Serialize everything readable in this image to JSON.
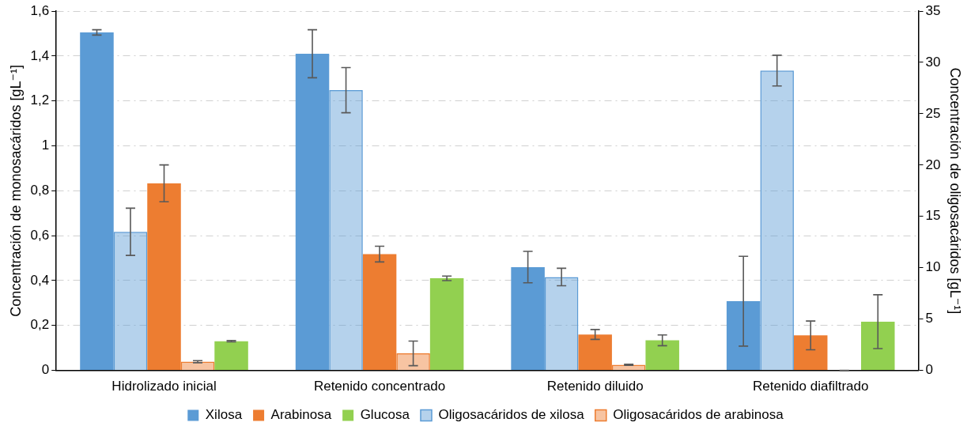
{
  "chart_data": {
    "type": "bar",
    "categories": [
      "Hidrolizado inicial",
      "Retenido concentrado",
      "Retenido diluido",
      "Retenido diafiltrado"
    ],
    "ylabel": "Concentración de monosacáridos [gL⁻¹]",
    "y2label": "Concentración de oligosacáridos [gL⁻¹]",
    "ylim": [
      0,
      1.6
    ],
    "yticks": [
      {
        "value": 0,
        "label": "0"
      },
      {
        "value": 0.2,
        "label": "0,2"
      },
      {
        "value": 0.4,
        "label": "0,4"
      },
      {
        "value": 0.6,
        "label": "0,6"
      },
      {
        "value": 0.8,
        "label": "0,8"
      },
      {
        "value": 1,
        "label": "1"
      },
      {
        "value": 1.2,
        "label": "1,2"
      },
      {
        "value": 1.4,
        "label": "1,4"
      },
      {
        "value": 1.6,
        "label": "1,6"
      }
    ],
    "y2lim": [
      0,
      35
    ],
    "y2ticks": [
      0,
      5,
      10,
      15,
      20,
      25,
      30,
      35
    ],
    "grid": "y",
    "legend": "bottom",
    "series": [
      {
        "name": "Xilosa",
        "color": "#5b9bd5",
        "values": [
          1.505,
          1.41,
          0.46,
          0.308
        ],
        "errors": [
          0.012,
          0.107,
          0.07,
          0.2
        ]
      },
      {
        "name": "Oligosacáridos de xilosa",
        "color": "#5b9bd5",
        "axis": "y2",
        "values": [
          13.5,
          27.3,
          9.1,
          29.2
        ],
        "errors": [
          2.3,
          2.2,
          0.85,
          1.5
        ]
      },
      {
        "name": "Arabinosa",
        "color": "#ed7d31",
        "values": [
          0.833,
          0.518,
          0.16,
          0.156
        ],
        "errors": [
          0.082,
          0.035,
          0.022,
          0.064
        ]
      },
      {
        "name": "Oligosacáridos de arabinosa",
        "color": "#ed7d31",
        "axis": "y2",
        "values": [
          0.85,
          1.66,
          0.55,
          0
        ],
        "errors": [
          0.1,
          1.2,
          0.05,
          0
        ]
      },
      {
        "name": "Glucosa",
        "color": "#92d050",
        "values": [
          0.13,
          0.41,
          0.134,
          0.217
        ],
        "errors": [
          0.003,
          0.01,
          0.024,
          0.12
        ]
      }
    ]
  }
}
